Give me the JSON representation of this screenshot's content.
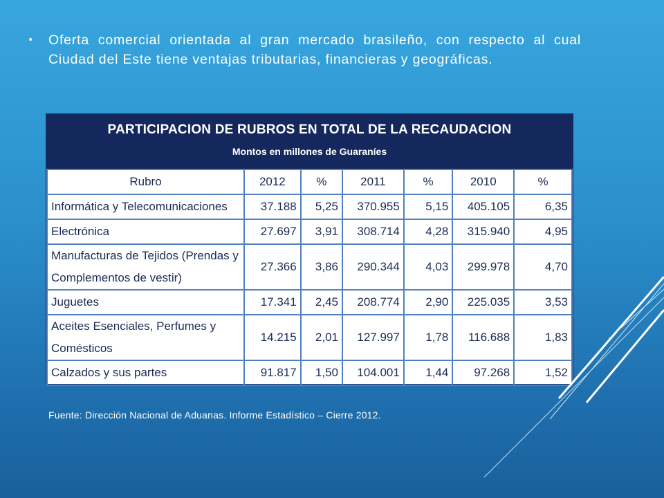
{
  "bullet": {
    "text": "Oferta comercial orientada al gran mercado brasileño, con respecto al cual Ciudad del Este tiene ventajas tributarias, financieras y geográficas."
  },
  "table": {
    "title": "PARTICIPACION DE RUBROS EN TOTAL DE LA RECAUDACION",
    "subtitle": "Montos en millones de Guaraníes",
    "headers": [
      "Rubro",
      "2012",
      "%",
      "2011",
      "%",
      "2010",
      "%"
    ],
    "rows": [
      [
        "Informática y Telecomunicaciones",
        "37.188",
        "5,25",
        "370.955",
        "5,15",
        "405.105",
        "6,35"
      ],
      [
        "Electrónica",
        "27.697",
        "3,91",
        "308.714",
        "4,28",
        "315.940",
        "4,95"
      ],
      [
        "Manufacturas de Tejidos (Prendas y Complementos de vestir)",
        "27.366",
        "3,86",
        "290.344",
        "4,03",
        "299.978",
        "4,70"
      ],
      [
        "Juguetes",
        "17.341",
        "2,45",
        "208.774",
        "2,90",
        "225.035",
        "3,53"
      ],
      [
        "Aceites Esenciales, Perfumes y Comésticos",
        "14.215",
        "2,01",
        "127.997",
        "1,78",
        "116.688",
        "1,83"
      ],
      [
        "Calzados y sus partes",
        "91.817",
        "1,50",
        "104.001",
        "1,44",
        "97.268",
        "1,52"
      ]
    ]
  },
  "footnote": "Fuente: Dirección Nacional de Aduanas. Informe Estadístico – Cierre 2012."
}
